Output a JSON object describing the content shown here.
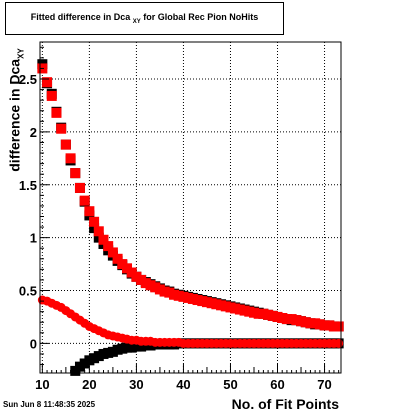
{
  "chart_data": {
    "type": "scatter",
    "title": "Fitted difference in Dca",
    "title_subscript": "XY",
    "title_suffix": " for Global Rec Pion NoHits",
    "xlabel": "No. of Fit Points",
    "ylabel": "difference in Dca",
    "ylabel_subscript": "XY",
    "xlim": [
      9.5,
      73.5
    ],
    "ylim": [
      -0.28,
      2.85
    ],
    "xticks": [
      10,
      20,
      30,
      40,
      50,
      60,
      70
    ],
    "xtick_labels": [
      "10",
      "20",
      "30",
      "40",
      "50",
      "60",
      "70"
    ],
    "yticks": [
      0,
      0.5,
      1,
      1.5,
      2,
      2.5
    ],
    "ytick_labels": [
      "0",
      "0.5",
      "1",
      "1.5",
      "2",
      "2.5"
    ],
    "grid": true,
    "series": [
      {
        "color": "#000000",
        "marker": "square",
        "x": [
          10,
          11,
          12,
          13,
          14,
          15,
          16,
          17,
          18,
          19,
          20,
          21,
          22,
          23,
          24,
          25,
          26,
          27,
          28,
          29,
          30,
          31,
          32,
          33,
          34,
          35,
          36,
          37,
          38,
          39,
          40,
          41,
          42,
          43,
          44,
          45,
          46,
          47,
          48,
          49,
          50,
          51,
          52,
          53,
          54,
          55,
          56,
          57,
          58,
          59,
          60,
          61,
          62,
          63,
          64,
          65,
          66,
          67,
          68,
          69,
          70,
          71,
          72,
          73
        ],
        "y": [
          2.64,
          2.46,
          2.36,
          2.19,
          2.04,
          1.88,
          1.73,
          1.61,
          1.47,
          1.34,
          1.21,
          1.09,
          1.0,
          0.94,
          0.88,
          0.83,
          0.78,
          0.74,
          0.7,
          0.66,
          0.63,
          0.6,
          0.58,
          0.56,
          0.54,
          0.52,
          0.5,
          0.49,
          0.47,
          0.46,
          0.45,
          0.44,
          0.43,
          0.42,
          0.41,
          0.4,
          0.39,
          0.38,
          0.37,
          0.36,
          0.35,
          0.34,
          0.33,
          0.32,
          0.31,
          0.3,
          0.29,
          0.28,
          0.27,
          0.26,
          0.25,
          0.24,
          0.23,
          0.22,
          0.22,
          0.21,
          0.2,
          0.19,
          0.18,
          0.18,
          0.17,
          0.17,
          0.16,
          0.16
        ]
      },
      {
        "color": "#ff0000",
        "marker": "square",
        "x": [
          10,
          11,
          12,
          13,
          14,
          15,
          16,
          17,
          18,
          19,
          20,
          21,
          22,
          23,
          24,
          25,
          26,
          27,
          28,
          29,
          30,
          31,
          32,
          33,
          34,
          35,
          36,
          37,
          38,
          39,
          40,
          41,
          42,
          43,
          44,
          45,
          46,
          47,
          48,
          49,
          50,
          51,
          52,
          53,
          54,
          55,
          56,
          57,
          58,
          59,
          60,
          61,
          62,
          63,
          64,
          65,
          66,
          67,
          68,
          69,
          70,
          71,
          72,
          73
        ],
        "y": [
          2.6,
          2.47,
          2.34,
          2.18,
          2.03,
          1.88,
          1.75,
          1.61,
          1.47,
          1.35,
          1.25,
          1.15,
          1.06,
          0.98,
          0.92,
          0.86,
          0.8,
          0.75,
          0.71,
          0.67,
          0.63,
          0.6,
          0.57,
          0.55,
          0.53,
          0.51,
          0.49,
          0.48,
          0.46,
          0.45,
          0.44,
          0.43,
          0.42,
          0.41,
          0.4,
          0.39,
          0.38,
          0.37,
          0.36,
          0.35,
          0.34,
          0.33,
          0.32,
          0.31,
          0.3,
          0.29,
          0.28,
          0.28,
          0.27,
          0.26,
          0.25,
          0.24,
          0.23,
          0.23,
          0.22,
          0.21,
          0.2,
          0.19,
          0.19,
          0.18,
          0.17,
          0.17,
          0.16,
          0.16
        ]
      },
      {
        "color": "#000000",
        "marker": "square",
        "x": [
          17,
          18,
          19,
          20,
          21,
          22,
          23,
          24,
          25,
          26,
          27,
          28,
          29,
          30,
          31,
          32,
          33,
          34,
          35,
          36,
          37,
          38,
          39,
          40,
          41,
          42,
          43,
          44,
          45,
          46,
          47,
          48,
          49,
          50,
          51,
          52,
          53,
          54,
          55,
          56,
          57,
          58,
          59,
          60,
          61,
          62,
          63,
          64,
          65,
          66,
          67,
          68,
          69,
          70,
          71,
          72,
          73
        ],
        "y": [
          -0.26,
          -0.22,
          -0.19,
          -0.16,
          -0.14,
          -0.12,
          -0.1,
          -0.09,
          -0.08,
          -0.06,
          -0.05,
          -0.04,
          -0.04,
          -0.03,
          -0.03,
          -0.02,
          -0.02,
          -0.01,
          -0.01,
          -0.01,
          -0.01,
          -0.01,
          0,
          0,
          0,
          0,
          0,
          0,
          0,
          0,
          0,
          0,
          0,
          0,
          0,
          0,
          0,
          0,
          0,
          0,
          0,
          0,
          0,
          0,
          0,
          0,
          0,
          0,
          0,
          0,
          0,
          0,
          0,
          0,
          0,
          0,
          0
        ]
      },
      {
        "color": "#ff0000",
        "marker": "circle",
        "x": [
          10,
          11,
          12,
          13,
          14,
          15,
          16,
          17,
          18,
          19,
          20,
          21,
          22,
          23,
          24,
          25,
          26,
          27,
          28,
          29,
          30,
          31,
          32,
          33,
          34,
          35,
          36,
          37,
          38,
          39,
          40,
          41,
          42,
          43,
          44,
          45,
          46,
          47,
          48,
          49,
          50,
          51,
          52,
          53,
          54,
          55,
          56,
          57,
          58,
          59,
          60,
          61,
          62,
          63,
          64,
          65,
          66,
          67,
          68,
          69,
          70,
          71,
          72,
          73
        ],
        "y": [
          0.41,
          0.4,
          0.38,
          0.36,
          0.34,
          0.31,
          0.28,
          0.25,
          0.22,
          0.19,
          0.16,
          0.14,
          0.12,
          0.1,
          0.08,
          0.07,
          0.06,
          0.05,
          0.04,
          0.03,
          0.03,
          0.02,
          0.02,
          0.02,
          0.01,
          0.01,
          0.01,
          0.01,
          0.01,
          0.01,
          0,
          0,
          0,
          0,
          0,
          0,
          0,
          0,
          0,
          0,
          0,
          0,
          0,
          0,
          0,
          0,
          0,
          0,
          0,
          0,
          0,
          0,
          0,
          0,
          0,
          0,
          0,
          0,
          0,
          0,
          0,
          0,
          0,
          0
        ]
      }
    ]
  },
  "footer": {
    "timestamp": "Sun Jun  8 11:48:35 2025"
  }
}
